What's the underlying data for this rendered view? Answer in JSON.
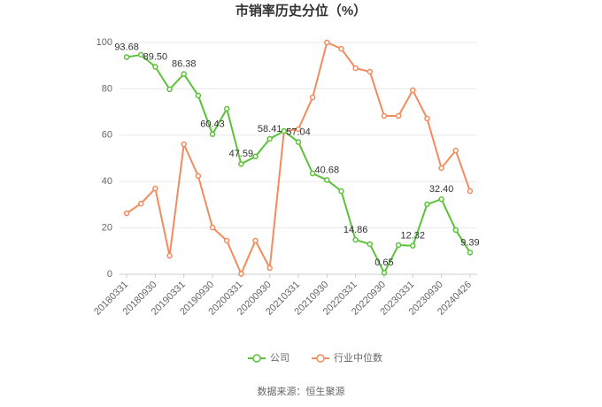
{
  "chart_data": {
    "type": "line",
    "title": "市销率历史分位（%）",
    "categories": [
      "20180331",
      null,
      "20180930",
      null,
      "20190331",
      null,
      "20190930",
      null,
      "20200331",
      null,
      "20200930",
      null,
      "20210331",
      null,
      "20210930",
      null,
      "20220331",
      null,
      "20220930",
      null,
      "20230331",
      null,
      "20230930",
      null,
      "20240426"
    ],
    "series": [
      {
        "name": "公司",
        "color": "#5cc23a",
        "values": [
          93.68,
          94.7,
          89.5,
          79.8,
          86.38,
          77.1,
          60.43,
          71.4,
          47.59,
          50.8,
          58.41,
          61.8,
          57.04,
          43.5,
          40.68,
          35.9,
          14.86,
          13.0,
          0.65,
          12.6,
          12.32,
          30.2,
          32.4,
          19.1,
          9.39
        ],
        "value_labels": [
          "93.68",
          null,
          "89.50",
          null,
          "86.38",
          null,
          "60.43",
          null,
          "47.59",
          null,
          "58.41",
          null,
          "57.04",
          null,
          "40.68",
          null,
          "14.86",
          null,
          "0.65",
          null,
          "12.32",
          null,
          "32.40",
          null,
          "9.39"
        ]
      },
      {
        "name": "行业中位数",
        "color": "#f28c5e",
        "values": [
          26.3,
          30.5,
          37.0,
          8.0,
          56.1,
          42.4,
          20.2,
          14.5,
          0.2,
          14.5,
          2.7,
          61.8,
          62.6,
          76.3,
          100.0,
          97.3,
          88.9,
          87.4,
          68.3,
          68.3,
          79.4,
          67.2,
          45.8,
          53.4,
          35.9
        ]
      }
    ],
    "ylim": [
      0,
      100
    ],
    "yticks": [
      0,
      20,
      40,
      60,
      80,
      100
    ],
    "grid": true,
    "source": "数据来源：恒生聚源"
  }
}
